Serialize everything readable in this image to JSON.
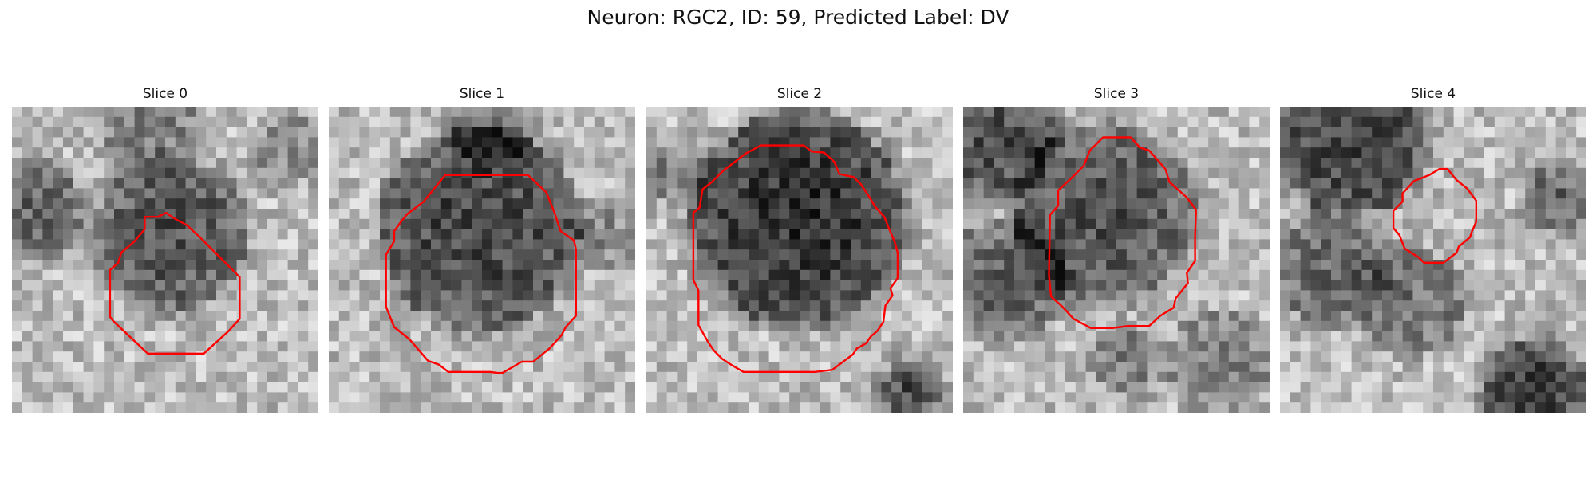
{
  "figure": {
    "title": "Neuron: RGC2, ID: 59, Predicted Label: DV"
  },
  "slices": [
    {
      "title": "Slice 0"
    },
    {
      "title": "Slice 1"
    },
    {
      "title": "Slice 2"
    },
    {
      "title": "Slice 3"
    },
    {
      "title": "Slice 4"
    }
  ],
  "colors": {
    "contour": "#ff0000",
    "background": "#ffffff",
    "image_colormap": "grayscale"
  }
}
